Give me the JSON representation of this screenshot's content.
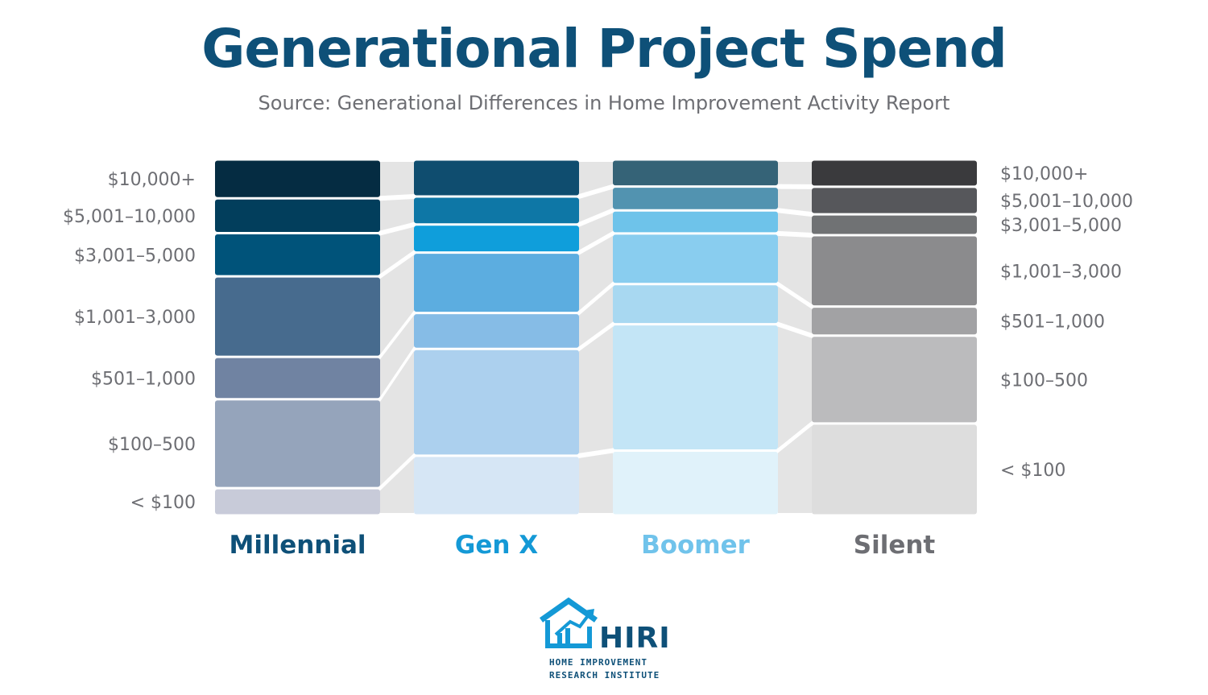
{
  "title": "Generational Project Spend",
  "subtitle": "Source: Generational Differences in Home Improvement Activity Report",
  "chart_data": {
    "type": "stacked-bar",
    "orientation": "vertical, 100% stacked",
    "categories": [
      "< $100",
      "$100–500",
      "$501–1,000",
      "$1,001–3,000",
      "$3,001–5,000",
      "$5,001–10,000",
      "$10,000+"
    ],
    "left_labels": [
      "$10,000+",
      "$5,001–10,000",
      "$3,001–5,000",
      "$1,001–3,000",
      "$501–1,000",
      "$100–500",
      "< $100"
    ],
    "right_labels": [
      "$10,000+",
      "$5,001–10,000",
      "$3,001–5,000",
      "$1,001–3,000",
      "$501–1,000",
      "$100–500",
      "< $100"
    ],
    "unit": "percent of respondents (estimated)",
    "series": [
      {
        "name": "Millennial",
        "label_color": "#0e5078",
        "values": [
          7.6,
          24.7,
          11.8,
          22.4,
          12.0,
          9.7,
          10.8
        ],
        "colors": [
          "#c8cbd9",
          "#95a4bb",
          "#7083a2",
          "#476b8e",
          "#00537a",
          "#023e5c",
          "#052c42"
        ]
      },
      {
        "name": "Gen X",
        "label_color": "#1499d6",
        "values": [
          16.6,
          29.7,
          10.0,
          16.8,
          7.8,
          7.8,
          10.3
        ],
        "colors": [
          "#d6e6f5",
          "#acd0ee",
          "#86bce6",
          "#5cade0",
          "#0f9edb",
          "#0e77a6",
          "#0f4d6f"
        ]
      },
      {
        "name": "Boomer",
        "label_color": "#70c3eb",
        "values": [
          18.2,
          35.5,
          11.3,
          14.2,
          6.5,
          6.7,
          7.6
        ],
        "colors": [
          "#e0f2fa",
          "#c3e5f6",
          "#a8d8f1",
          "#89cdef",
          "#6ec3ea",
          "#5293b0",
          "#356377"
        ]
      },
      {
        "name": "Silent",
        "label_color": "#6d6e73",
        "values": [
          25.6,
          24.5,
          8.1,
          19.9,
          5.8,
          7.7,
          7.6
        ],
        "colors": [
          "#dddddd",
          "#bbbbbd",
          "#a2a2a4",
          "#8b8b8d",
          "#707274",
          "#56575b",
          "#3a3a3d"
        ]
      }
    ],
    "connector_color": "#e4e4e4"
  },
  "logo": {
    "word": "HIRI",
    "line1": "HOME IMPROVEMENT",
    "line2": "RESEARCH INSTITUTE",
    "color": "#0e5078",
    "accent": "#1499d6"
  }
}
